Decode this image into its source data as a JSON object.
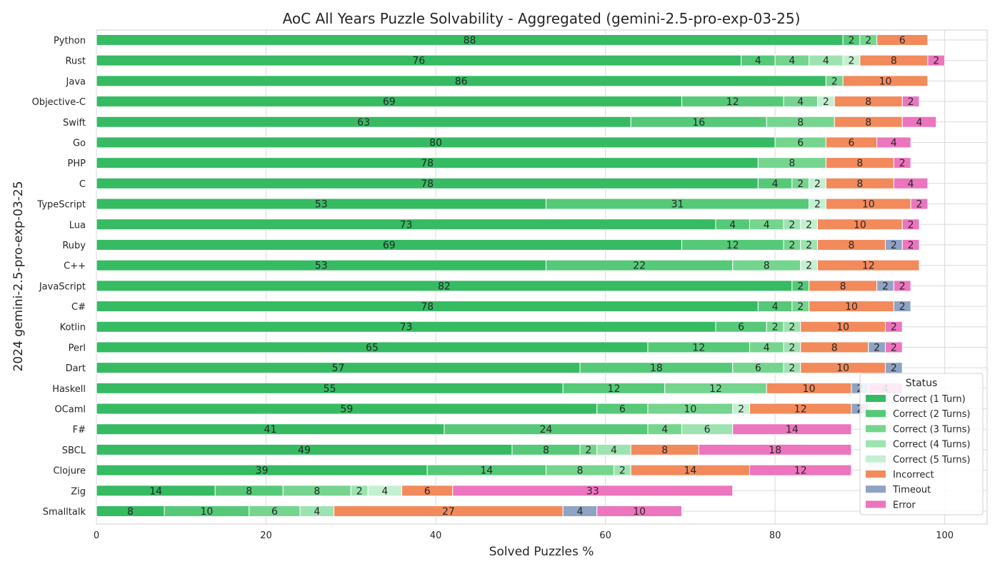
{
  "chart_data": {
    "type": "bar",
    "orientation": "horizontal",
    "stacked": true,
    "title": "AoC All Years Puzzle Solvability - Aggregated (gemini-2.5-pro-exp-03-25)",
    "xlabel": "Solved Puzzles %",
    "ylabel": "2024 gemini-2.5-pro-exp-03-25",
    "xlim": [
      0,
      105
    ],
    "xticks": [
      0,
      20,
      40,
      60,
      80,
      100
    ],
    "grid": true,
    "legend": {
      "title": "Status",
      "placement": "lower-right"
    },
    "categories": [
      "Python",
      "Rust",
      "Java",
      "Objective-C",
      "Swift",
      "Go",
      "PHP",
      "C",
      "TypeScript",
      "Lua",
      "Ruby",
      "C++",
      "JavaScript",
      "C#",
      "Kotlin",
      "Perl",
      "Dart",
      "Haskell",
      "OCaml",
      "F#",
      "SBCL",
      "Clojure",
      "Zig",
      "Smalltalk"
    ],
    "series": [
      {
        "name": "Correct (1 Turn)",
        "color": "#36bb63",
        "values": [
          88,
          76,
          86,
          69,
          63,
          80,
          78,
          78,
          53,
          73,
          69,
          53,
          82,
          78,
          73,
          65,
          57,
          55,
          59,
          41,
          49,
          39,
          14,
          8
        ]
      },
      {
        "name": "Correct (2 Turns)",
        "color": "#55c978",
        "values": [
          2,
          4,
          0,
          12,
          16,
          0,
          0,
          4,
          31,
          4,
          12,
          22,
          2,
          4,
          6,
          12,
          18,
          12,
          6,
          24,
          8,
          14,
          8,
          10
        ]
      },
      {
        "name": "Correct (3 Turns)",
        "color": "#75d58f",
        "values": [
          2,
          4,
          2,
          4,
          8,
          6,
          8,
          2,
          0,
          4,
          2,
          8,
          0,
          2,
          2,
          4,
          6,
          12,
          10,
          4,
          2,
          8,
          8,
          6
        ]
      },
      {
        "name": "Correct (4 Turns)",
        "color": "#9de3b1",
        "values": [
          0,
          4,
          0,
          0,
          0,
          0,
          0,
          0,
          0,
          2,
          2,
          0,
          0,
          0,
          2,
          2,
          2,
          0,
          0,
          6,
          4,
          2,
          2,
          4
        ]
      },
      {
        "name": "Correct (5 Turns)",
        "color": "#c4f0d2",
        "values": [
          0,
          2,
          0,
          2,
          0,
          0,
          0,
          2,
          2,
          2,
          0,
          2,
          0,
          0,
          0,
          0,
          0,
          0,
          2,
          0,
          0,
          0,
          4,
          0
        ]
      },
      {
        "name": "Incorrect",
        "color": "#f28a5c",
        "values": [
          6,
          8,
          10,
          8,
          8,
          6,
          8,
          8,
          10,
          10,
          8,
          12,
          8,
          10,
          10,
          8,
          10,
          10,
          12,
          0,
          8,
          14,
          6,
          27
        ]
      },
      {
        "name": "Timeout",
        "color": "#8fa3c4",
        "values": [
          0,
          0,
          0,
          0,
          0,
          0,
          0,
          0,
          0,
          0,
          2,
          0,
          2,
          2,
          0,
          2,
          2,
          2,
          2,
          0,
          0,
          0,
          0,
          4
        ]
      },
      {
        "name": "Error",
        "color": "#ec75be",
        "values": [
          0,
          2,
          0,
          2,
          4,
          4,
          2,
          4,
          2,
          2,
          2,
          0,
          2,
          0,
          2,
          2,
          0,
          4,
          0,
          14,
          18,
          12,
          33,
          10
        ]
      }
    ]
  }
}
